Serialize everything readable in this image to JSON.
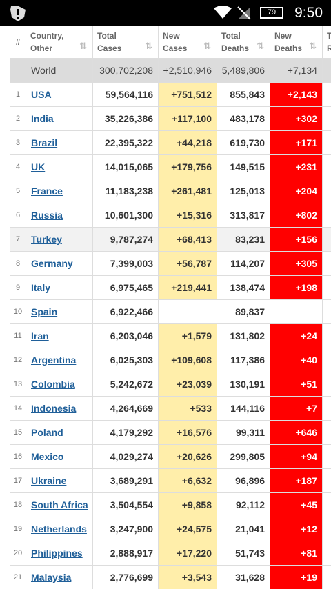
{
  "status_bar": {
    "battery": "79",
    "time": "9:50"
  },
  "table": {
    "header": [
      [
        "#"
      ],
      [
        "Country,",
        "Other"
      ],
      [
        "Total",
        "Cases"
      ],
      [
        "New",
        "Cases"
      ],
      [
        "Total",
        "Deaths"
      ],
      [
        "New",
        "Deaths"
      ],
      [
        "Total",
        "Recovered"
      ]
    ],
    "world": [
      "World",
      "300,702,208",
      "+2,510,946",
      "5,489,806",
      "+7,134"
    ],
    "rows": [
      [
        "1",
        "USA",
        "59,564,116",
        "+751,512",
        "855,843",
        "+2,143"
      ],
      [
        "2",
        "India",
        "35,226,386",
        "+117,100",
        "483,178",
        "+302"
      ],
      [
        "3",
        "Brazil",
        "22,395,322",
        "+44,218",
        "619,730",
        "+171"
      ],
      [
        "4",
        "UK",
        "14,015,065",
        "+179,756",
        "149,515",
        "+231"
      ],
      [
        "5",
        "France",
        "11,183,238",
        "+261,481",
        "125,013",
        "+204"
      ],
      [
        "6",
        "Russia",
        "10,601,300",
        "+15,316",
        "313,817",
        "+802"
      ],
      [
        "7",
        "Turkey",
        "9,787,274",
        "+68,413",
        "83,231",
        "+156"
      ],
      [
        "8",
        "Germany",
        "7,399,003",
        "+56,787",
        "114,207",
        "+305"
      ],
      [
        "9",
        "Italy",
        "6,975,465",
        "+219,441",
        "138,474",
        "+198"
      ],
      [
        "10",
        "Spain",
        "6,922,466",
        null,
        "89,837",
        null
      ],
      [
        "11",
        "Iran",
        "6,203,046",
        "+1,579",
        "131,802",
        "+24"
      ],
      [
        "12",
        "Argentina",
        "6,025,303",
        "+109,608",
        "117,386",
        "+40"
      ],
      [
        "13",
        "Colombia",
        "5,242,672",
        "+23,039",
        "130,191",
        "+51"
      ],
      [
        "14",
        "Indonesia",
        "4,264,669",
        "+533",
        "144,116",
        "+7"
      ],
      [
        "15",
        "Poland",
        "4,179,292",
        "+16,576",
        "99,311",
        "+646"
      ],
      [
        "16",
        "Mexico",
        "4,029,274",
        "+20,626",
        "299,805",
        "+94"
      ],
      [
        "17",
        "Ukraine",
        "3,689,291",
        "+6,632",
        "96,896",
        "+187"
      ],
      [
        "18",
        "South Africa",
        "3,504,554",
        "+9,858",
        "92,112",
        "+45"
      ],
      [
        "19",
        "Netherlands",
        "3,247,900",
        "+24,575",
        "21,041",
        "+12"
      ],
      [
        "20",
        "Philippines",
        "2,888,917",
        "+17,220",
        "51,743",
        "+81"
      ],
      [
        "21",
        "Malaysia",
        "2,776,699",
        "+3,543",
        "31,628",
        "+19"
      ]
    ]
  }
}
